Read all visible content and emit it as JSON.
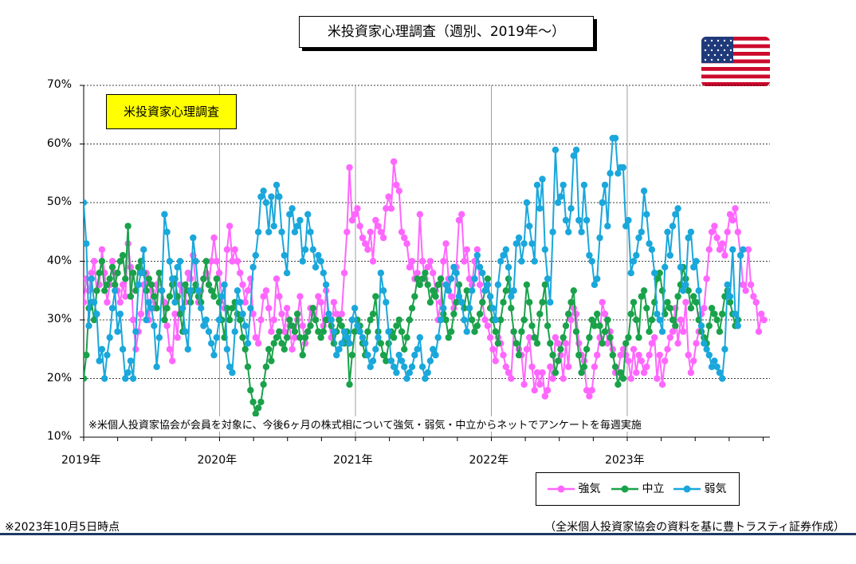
{
  "header": {
    "title": "米投資家心理調査（週別、2019年～）",
    "series_box": "米投資家心理調査"
  },
  "footer": {
    "date_note": "※2023年10月5日時点",
    "source": "（全米個人投資家協会の資料を基に豊トラスティ証券作成）"
  },
  "flag_icon": "us-flag-icon",
  "chart_data": {
    "type": "line",
    "title": "米投資家心理調査（週別、2019年～）",
    "annotation": "※米個人投資家協会が会員を対象に、今後6ヶ月の株式相について強気・弱気・中立からネットでアンケートを毎週実施",
    "ylim": [
      10,
      70
    ],
    "yticks": [
      "10%",
      "20%",
      "30%",
      "40%",
      "50%",
      "60%",
      "70%"
    ],
    "ytick_values": [
      10,
      20,
      30,
      40,
      50,
      60,
      70
    ],
    "xlim": [
      2019.0,
      2024.05
    ],
    "xticks": [
      "2019年",
      "2020年",
      "2021年",
      "2022年",
      "2023年"
    ],
    "xtick_values": [
      2019,
      2020,
      2021,
      2022,
      2023
    ],
    "grid": true,
    "legend_position": "bottom-right",
    "x_start": 2019.0,
    "week": 0.01918,
    "series": [
      {
        "name": "強気",
        "color": "#ff66ff",
        "values": [
          33,
          37,
          35,
          38,
          40,
          35,
          36,
          42,
          38,
          33,
          36,
          40,
          38,
          35,
          33,
          36,
          34,
          43,
          39,
          30,
          25,
          28,
          31,
          36,
          38,
          30,
          35,
          32,
          36,
          38,
          35,
          33,
          29,
          25,
          23,
          31,
          27,
          36,
          35,
          33,
          38,
          37,
          41,
          36,
          33,
          35,
          37,
          38,
          36,
          40,
          44,
          40,
          38,
          34,
          32,
          42,
          46,
          40,
          42,
          40,
          38,
          36,
          33,
          35,
          37,
          31,
          27,
          26,
          30,
          34,
          35,
          32,
          28,
          30,
          37,
          34,
          31,
          28,
          32,
          29,
          25,
          27,
          30,
          34,
          29,
          26,
          28,
          32,
          31,
          30,
          34,
          33,
          29,
          35,
          30,
          27,
          33,
          31,
          30,
          31,
          38,
          45,
          56,
          47,
          48,
          49,
          46,
          44,
          43,
          42,
          45,
          40,
          47,
          46,
          45,
          44,
          49,
          51,
          49,
          57,
          53,
          52,
          45,
          44,
          43,
          39,
          40,
          37,
          38,
          48,
          40,
          37,
          39,
          40,
          38,
          35,
          30,
          33,
          40,
          43,
          37,
          34,
          32,
          39,
          47,
          48,
          40,
          42,
          37,
          36,
          40,
          42,
          36,
          33,
          30,
          29,
          27,
          25,
          23,
          27,
          26,
          24,
          22,
          21,
          20,
          28,
          26,
          25,
          24,
          19,
          25,
          27,
          22,
          18,
          21,
          19,
          21,
          17,
          18,
          22,
          20,
          27,
          26,
          24,
          20,
          26,
          22,
          30,
          32,
          31,
          26,
          24,
          23,
          18,
          17,
          18,
          22,
          24,
          27,
          33,
          31,
          26,
          28,
          25,
          21,
          21,
          24,
          25,
          24,
          23,
          20,
          25,
          21,
          24,
          23,
          21,
          22,
          24,
          26,
          27,
          20,
          24,
          19,
          23,
          25,
          27,
          28,
          32,
          26,
          30,
          28,
          33,
          24,
          21,
          23,
          26,
          28,
          31,
          32,
          37,
          42,
          45,
          46,
          44,
          42,
          43,
          41,
          45,
          48,
          47,
          49,
          45,
          41,
          36,
          35,
          42,
          36,
          34,
          33,
          28,
          31,
          30
        ]
      },
      {
        "name": "中立",
        "color": "#19a24a",
        "values": [
          20,
          24,
          32,
          33,
          30,
          35,
          38,
          40,
          35,
          36,
          37,
          39,
          36,
          38,
          40,
          41,
          37,
          46,
          34,
          38,
          35,
          39,
          40,
          38,
          35,
          37,
          36,
          34,
          32,
          38,
          35,
          30,
          32,
          34,
          36,
          37,
          34,
          31,
          28,
          36,
          35,
          33,
          35,
          36,
          34,
          33,
          37,
          40,
          36,
          35,
          34,
          37,
          33,
          30,
          27,
          32,
          30,
          32,
          33,
          31,
          30,
          27,
          25,
          22,
          18,
          16,
          14,
          15,
          16,
          19,
          22,
          25,
          23,
          26,
          27,
          28,
          26,
          25,
          27,
          30,
          29,
          28,
          31,
          27,
          24,
          27,
          28,
          29,
          32,
          30,
          28,
          27,
          28,
          30,
          31,
          29,
          26,
          28,
          30,
          29,
          26,
          28,
          19,
          24,
          28,
          30,
          29,
          26,
          24,
          28,
          30,
          31,
          34,
          28,
          26,
          24,
          23,
          26,
          28,
          27,
          29,
          30,
          28,
          25,
          27,
          30,
          32,
          34,
          37,
          36,
          37,
          38,
          36,
          33,
          35,
          34,
          36,
          37,
          31,
          30,
          27,
          28,
          31,
          33,
          36,
          33,
          32,
          35,
          32,
          30,
          28,
          29,
          31,
          33,
          35,
          37,
          32,
          30,
          28,
          26,
          30,
          33,
          35,
          37,
          32,
          28,
          26,
          24,
          28,
          30,
          36,
          33,
          29,
          27,
          26,
          31,
          33,
          36,
          29,
          26,
          24,
          21,
          23,
          25,
          27,
          29,
          31,
          33,
          35,
          28,
          24,
          21,
          22,
          25,
          27,
          30,
          29,
          31,
          29,
          26,
          28,
          30,
          27,
          24,
          22,
          19,
          21,
          20,
          26,
          27,
          31,
          33,
          30,
          27,
          34,
          35,
          32,
          28,
          30,
          33,
          37,
          38,
          35,
          31,
          33,
          32,
          30,
          29,
          34,
          36,
          39,
          37,
          35,
          32,
          34,
          33,
          30,
          28,
          27,
          26,
          29,
          32,
          31,
          30,
          28,
          31,
          34,
          35,
          33,
          31,
          29,
          30
        ]
      },
      {
        "name": "弱気",
        "color": "#1aa7db",
        "values": [
          50,
          43,
          29,
          37,
          33,
          31,
          23,
          25,
          20,
          24,
          27,
          32,
          35,
          28,
          31,
          25,
          20,
          21,
          23,
          20,
          28,
          36,
          38,
          42,
          30,
          33,
          32,
          29,
          22,
          27,
          35,
          48,
          45,
          40,
          37,
          33,
          39,
          40,
          32,
          28,
          25,
          35,
          44,
          40,
          35,
          32,
          29,
          30,
          28,
          26,
          24,
          27,
          30,
          34,
          36,
          25,
          22,
          21,
          28,
          35,
          33,
          31,
          29,
          26,
          32,
          39,
          41,
          45,
          51,
          52,
          50,
          45,
          51,
          46,
          53,
          51,
          45,
          41,
          38,
          48,
          49,
          45,
          46,
          47,
          40,
          42,
          48,
          45,
          42,
          39,
          41,
          40,
          38,
          36,
          31,
          30,
          28,
          24,
          25,
          26,
          28,
          27,
          26,
          30,
          32,
          29,
          28,
          27,
          26,
          24,
          22,
          23,
          25,
          27,
          38,
          35,
          33,
          28,
          23,
          22,
          21,
          24,
          23,
          22,
          20,
          21,
          22,
          24,
          25,
          27,
          22,
          20,
          21,
          23,
          25,
          24,
          27,
          30,
          32,
          36,
          35,
          37,
          39,
          38,
          34,
          33,
          30,
          28,
          32,
          35,
          37,
          41,
          39,
          38,
          35,
          36,
          34,
          32,
          30,
          36,
          40,
          41,
          42,
          39,
          34,
          35,
          43,
          44,
          40,
          43,
          50,
          46,
          43,
          40,
          53,
          49,
          54,
          42,
          37,
          33,
          45,
          59,
          50,
          51,
          53,
          47,
          45,
          49,
          58,
          59,
          47,
          45,
          53,
          47,
          41,
          40,
          36,
          37,
          44,
          50,
          53,
          46,
          55,
          61,
          61,
          55,
          56,
          56,
          46,
          47,
          38,
          40,
          41,
          44,
          45,
          52,
          48,
          43,
          42,
          38,
          31,
          30,
          28,
          39,
          45,
          41,
          46,
          48,
          49,
          39,
          35,
          36,
          44,
          45,
          39,
          40,
          35,
          29,
          26,
          25,
          24,
          22,
          23,
          22,
          21,
          20,
          25,
          36,
          34,
          42,
          31,
          29,
          41,
          42
        ]
      }
    ]
  }
}
